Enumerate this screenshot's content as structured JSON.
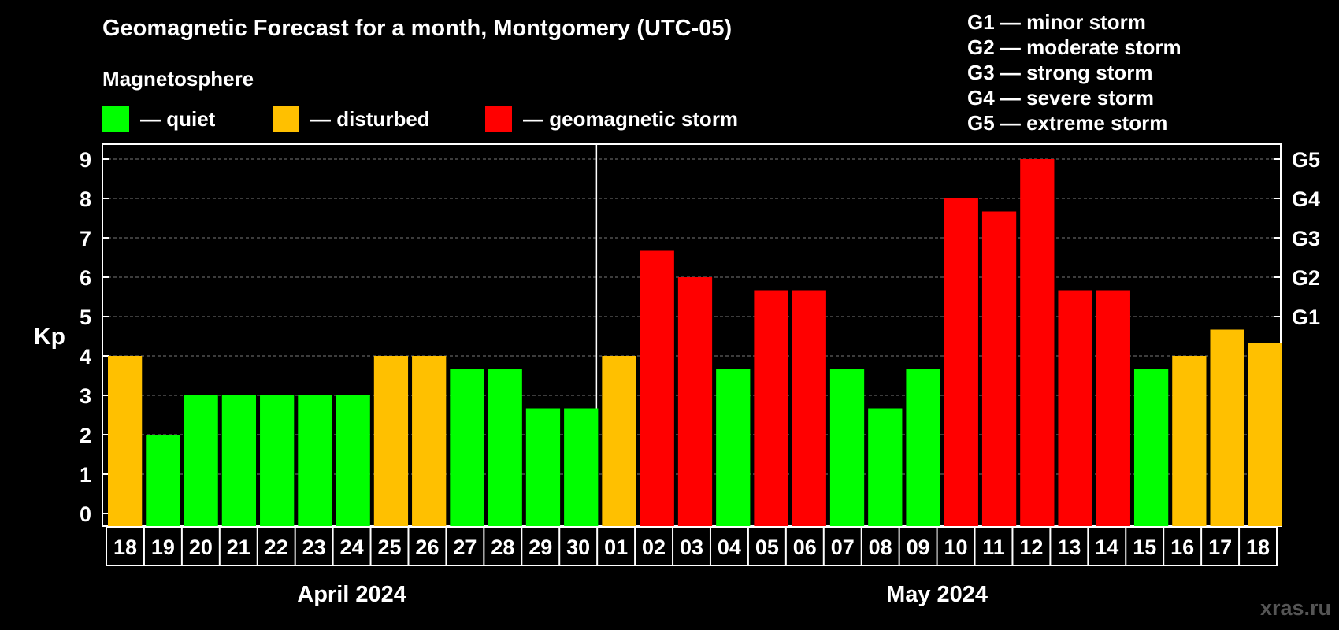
{
  "chart_data": {
    "type": "bar",
    "title": "Geomagnetic Forecast for a month, Montgomery (UTC-05)",
    "subtitle": "Magnetosphere",
    "ylabel": "Kp",
    "ylim": [
      0,
      9
    ],
    "yticks": [
      "0",
      "1",
      "2",
      "3",
      "4",
      "5",
      "6",
      "7",
      "8",
      "9"
    ],
    "right_axis": [
      {
        "value": 5,
        "label": "G1"
      },
      {
        "value": 6,
        "label": "G2"
      },
      {
        "value": 7,
        "label": "G3"
      },
      {
        "value": 8,
        "label": "G4"
      },
      {
        "value": 9,
        "label": "G5"
      }
    ],
    "legend": [
      {
        "label": "— quiet",
        "color": "#00ff00"
      },
      {
        "label": "— disturbed",
        "color": "#ffc000"
      },
      {
        "label": "— geomagnetic storm",
        "color": "#ff0000"
      }
    ],
    "g_scale": [
      "G1 — minor storm",
      "G2 — moderate storm",
      "G3 — strong storm",
      "G4 — severe storm",
      "G5 — extreme storm"
    ],
    "months": [
      {
        "label": "April 2024",
        "start": 0,
        "count": 13
      },
      {
        "label": "May 2024",
        "start": 13,
        "count": 18
      }
    ],
    "categories": [
      "18",
      "19",
      "20",
      "21",
      "22",
      "23",
      "24",
      "25",
      "26",
      "27",
      "28",
      "29",
      "30",
      "01",
      "02",
      "03",
      "04",
      "05",
      "06",
      "07",
      "08",
      "09",
      "10",
      "11",
      "12",
      "13",
      "14",
      "15",
      "16",
      "17",
      "18"
    ],
    "values": [
      4,
      2,
      3,
      3,
      3,
      3,
      3,
      4,
      4,
      3.67,
      3.67,
      2.67,
      2.67,
      4,
      6.67,
      6,
      3.67,
      5.67,
      5.67,
      3.67,
      2.67,
      3.67,
      8,
      7.67,
      9,
      5.67,
      5.67,
      3.67,
      4,
      4.67,
      4.33
    ],
    "status": [
      "disturbed",
      "quiet",
      "quiet",
      "quiet",
      "quiet",
      "quiet",
      "quiet",
      "disturbed",
      "disturbed",
      "quiet",
      "quiet",
      "quiet",
      "quiet",
      "disturbed",
      "storm",
      "storm",
      "quiet",
      "storm",
      "storm",
      "quiet",
      "quiet",
      "quiet",
      "storm",
      "storm",
      "storm",
      "storm",
      "storm",
      "quiet",
      "disturbed",
      "disturbed",
      "disturbed"
    ],
    "colors": {
      "quiet": "#00ff00",
      "disturbed": "#ffc000",
      "storm": "#ff0000",
      "grid": "#777777",
      "axis": "#ffffff"
    }
  },
  "watermark": "xras.ru"
}
